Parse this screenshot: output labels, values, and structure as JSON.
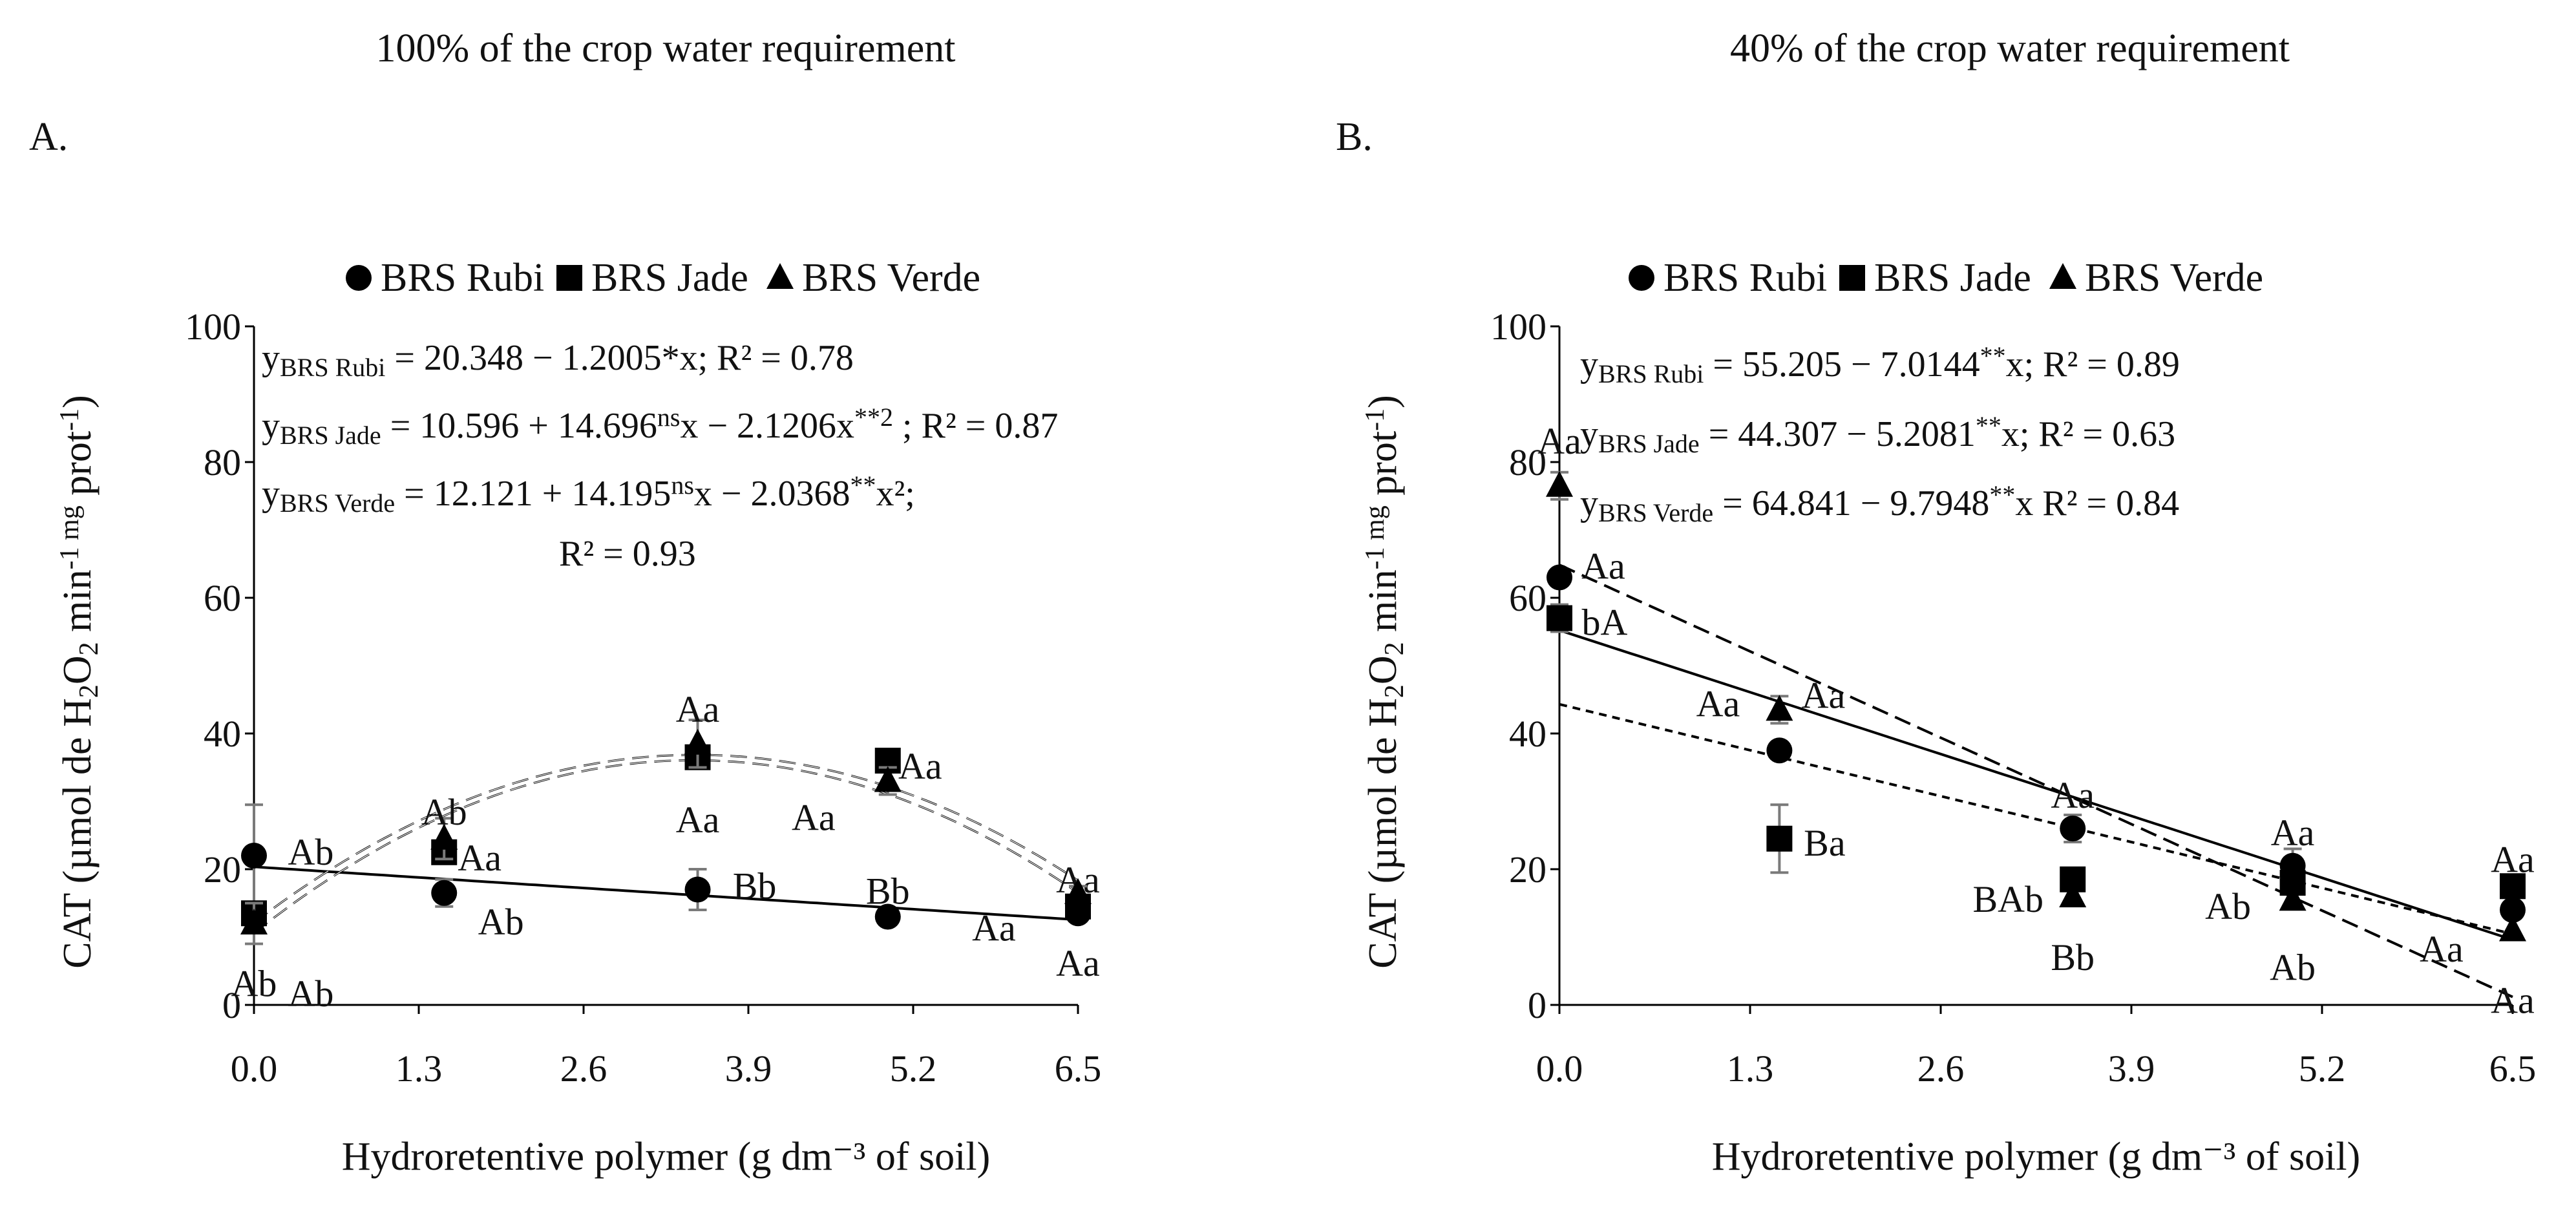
{
  "chart_data": [
    {
      "type": "scatter",
      "panel_label": "A.",
      "title": "100% of the crop water requirement",
      "xlabel": "Hydroretentive polymer (g dm⁻³ of soil)",
      "ylabel_parts": {
        "a": "CAT (µmol de H",
        "b": "2",
        "c": "O",
        "d": "2",
        "e": " min",
        "f": "-1 mg",
        "g": " prot",
        "h": "-1",
        "i": ")"
      },
      "xlim": [
        0,
        6.5
      ],
      "ylim": [
        0,
        100
      ],
      "xticks": [
        "0.0",
        "1.3",
        "2.6",
        "3.9",
        "5.2",
        "6.5"
      ],
      "yticks": [
        "0",
        "20",
        "40",
        "60",
        "80",
        "100"
      ],
      "legend_position": "top",
      "series": [
        {
          "name": "BRS Rubi",
          "marker": "circle",
          "x": [
            0,
            1.5,
            3.5,
            5.0,
            6.5
          ],
          "y": [
            22,
            16.5,
            17,
            13,
            13.5
          ],
          "err": [
            7.5,
            2,
            3,
            0,
            0
          ],
          "labels": [
            "Ab",
            "Ab",
            "Bb",
            "Bb",
            "Aa"
          ],
          "fit": {
            "kind": "linear",
            "coef": [
              20.348,
              -1.2005
            ],
            "dash": "none"
          }
        },
        {
          "name": "BRS Jade",
          "marker": "square",
          "x": [
            0,
            1.5,
            3.5,
            5.0,
            6.5
          ],
          "y": [
            13.5,
            22.5,
            36.5,
            36,
            14.5
          ],
          "err": [
            0,
            0,
            0,
            0,
            0
          ],
          "labels": [
            "Ab",
            "Aa",
            "Aa",
            "Aa",
            "Aa"
          ],
          "fit": {
            "kind": "quadratic",
            "coef": [
              10.596,
              14.696,
              -2.1206
            ],
            "dash": "dashed"
          }
        },
        {
          "name": "BRS Verde",
          "marker": "triangle",
          "x": [
            0,
            1.5,
            3.5,
            5.0,
            6.5
          ],
          "y": [
            12,
            24.5,
            38.5,
            33,
            16.5
          ],
          "err": [
            3,
            3,
            3.5,
            2,
            1
          ],
          "labels": [
            "Ab",
            "Ab",
            "Aa",
            "Aa",
            "Aa"
          ],
          "fit": {
            "kind": "quadratic",
            "coef": [
              12.121,
              14.195,
              -2.0368
            ],
            "dash": "dashed"
          }
        }
      ],
      "equations": [
        [
          {
            "t": "y"
          },
          {
            "t": "BRS Rubi",
            "sub": true
          },
          {
            "t": " = 20.348 − 1.2005*x; R² = 0.78"
          }
        ],
        [
          {
            "t": "y"
          },
          {
            "t": "BRS Jade",
            "sub": true
          },
          {
            "t": " = 10.596 + 14.696"
          },
          {
            "t": "ns",
            "sup": true
          },
          {
            "t": "x − 2.1206x"
          },
          {
            "t": "**2",
            "sup": true
          },
          {
            "t": " ; R² = 0.87"
          }
        ],
        [
          {
            "t": "y"
          },
          {
            "t": "BRS Verde",
            "sub": true
          },
          {
            "t": " = 12.121 + 14.195"
          },
          {
            "t": "ns",
            "sup": true
          },
          {
            "t": "x − 2.0368"
          },
          {
            "t": "**",
            "sup": true
          },
          {
            "t": "x²;"
          }
        ],
        [
          {
            "t": "R² = 0.93"
          }
        ]
      ]
    },
    {
      "type": "scatter",
      "panel_label": "B.",
      "title": "40% of the crop water requirement",
      "xlabel": "Hydroretentive polymer (g dm⁻³ of soil)",
      "ylabel_parts": {
        "a": "CAT (µmol de H",
        "b": "2",
        "c": "O",
        "d": "2",
        "e": " min",
        "f": "-1 mg",
        "g": " prot",
        "h": "-1",
        "i": ")"
      },
      "xlim": [
        0,
        6.5
      ],
      "ylim": [
        0,
        100
      ],
      "xticks": [
        "0.0",
        "1.3",
        "2.6",
        "3.9",
        "5.2",
        "6.5"
      ],
      "yticks": [
        "0",
        "20",
        "40",
        "60",
        "80",
        "100"
      ],
      "legend_position": "top",
      "series": [
        {
          "name": "BRS Rubi",
          "marker": "circle",
          "x": [
            0,
            1.5,
            3.5,
            5.0,
            6.5
          ],
          "y": [
            63,
            37.5,
            26,
            20.5,
            14
          ],
          "err": [
            0,
            0,
            2,
            2.5,
            0
          ],
          "labels": [
            "Aa",
            "Aa",
            "Aa",
            "Aa",
            "Aa"
          ],
          "fit": {
            "kind": "linear",
            "coef": [
              55.205,
              -7.0144
            ],
            "dash": "solid"
          }
        },
        {
          "name": "BRS Jade",
          "marker": "square",
          "x": [
            0,
            1.5,
            3.5,
            5.0,
            6.5
          ],
          "y": [
            57,
            24.5,
            18.5,
            18,
            17.5
          ],
          "err": [
            2,
            5,
            0,
            0,
            0
          ],
          "labels": [
            "bA",
            "Ba",
            "BAb",
            "Ab",
            "Aa"
          ],
          "fit": {
            "kind": "linear",
            "coef": [
              44.307,
              -5.2081
            ],
            "dash": "dotted"
          }
        },
        {
          "name": "BRS Verde",
          "marker": "triangle",
          "x": [
            0,
            1.5,
            3.5,
            5.0,
            6.5
          ],
          "y": [
            76.5,
            43.5,
            16,
            15.5,
            11
          ],
          "err": [
            2,
            2,
            0,
            0,
            0
          ],
          "labels": [
            "Aa",
            "Aa",
            "Bb",
            "Ab",
            "Aa"
          ],
          "fit": {
            "kind": "linear",
            "coef": [
              64.841,
              -9.7948
            ],
            "dash": "dashed"
          }
        }
      ],
      "equations": [
        [
          {
            "t": "y"
          },
          {
            "t": "BRS Rubi",
            "sub": true
          },
          {
            "t": " = 55.205 − 7.0144"
          },
          {
            "t": "**",
            "sup": true
          },
          {
            "t": "x; R² = 0.89"
          }
        ],
        [
          {
            "t": "y"
          },
          {
            "t": "BRS Jade",
            "sub": true
          },
          {
            "t": " = 44.307 − 5.2081"
          },
          {
            "t": "**",
            "sup": true
          },
          {
            "t": "x;  R² = 0.63"
          }
        ],
        [
          {
            "t": "y"
          },
          {
            "t": "BRS Verde",
            "sub": true
          },
          {
            "t": " = 64.841 − 9.7948"
          },
          {
            "t": "**",
            "sup": true
          },
          {
            "t": "x R² = 0.84"
          }
        ]
      ]
    }
  ]
}
